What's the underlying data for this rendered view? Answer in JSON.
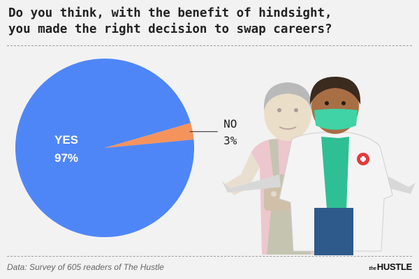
{
  "title_lines": [
    "Do you think, with the benefit of hindsight,",
    "you made the right decision to swap careers?"
  ],
  "source": "Data: Survey of 605 readers of The Hustle",
  "logo": {
    "prefix": "the",
    "name": "HUSTLE"
  },
  "colors": {
    "background": "#f2f2f2",
    "yes": "#4f86f7",
    "no": "#f5935d",
    "label_on_slice": "#ffffff",
    "label_outside": "#222222"
  },
  "illustration": {
    "description_icons": [
      "tradesperson-figure",
      "doctor-figure"
    ]
  },
  "chart_data": {
    "type": "pie",
    "title": "Do you think, with the benefit of hindsight, you made the right decision to swap careers?",
    "slices": [
      {
        "label": "YES",
        "value": 97,
        "value_label": "97%",
        "color": "#4f86f7"
      },
      {
        "label": "NO",
        "value": 3,
        "value_label": "3%",
        "color": "#f5935d"
      }
    ]
  }
}
